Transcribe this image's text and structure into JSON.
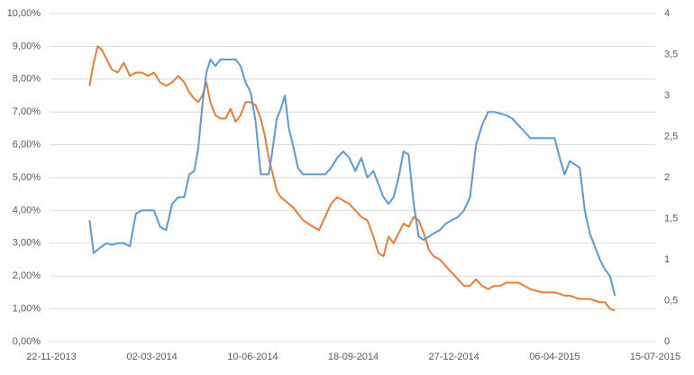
{
  "chart_data": {
    "type": "line",
    "x": [
      "30-12-2013",
      "03-01-2014",
      "07-01-2014",
      "11-01-2014",
      "16-01-2014",
      "21-01-2014",
      "27-01-2014",
      "02-02-2014",
      "08-02-2014",
      "14-02-2014",
      "20-02-2014",
      "26-02-2014",
      "04-03-2014",
      "10-03-2014",
      "16-03-2014",
      "22-03-2014",
      "28-03-2014",
      "03-04-2014",
      "08-04-2014",
      "13-04-2014",
      "17-04-2014",
      "21-04-2014",
      "25-04-2014",
      "29-04-2014",
      "04-05-2014",
      "09-05-2014",
      "14-05-2014",
      "19-05-2014",
      "24-05-2014",
      "29-05-2014",
      "03-06-2014",
      "08-06-2014",
      "13-06-2014",
      "18-06-2014",
      "22-06-2014",
      "26-06-2014",
      "30-06-2014",
      "04-07-2014",
      "08-07-2014",
      "12-07-2014",
      "16-07-2014",
      "20-07-2014",
      "25-07-2014",
      "30-07-2014",
      "04-08-2014",
      "09-08-2014",
      "15-08-2014",
      "21-08-2014",
      "27-08-2014",
      "02-09-2014",
      "08-09-2014",
      "14-09-2014",
      "20-09-2014",
      "26-09-2014",
      "02-10-2014",
      "08-10-2014",
      "13-10-2014",
      "18-10-2014",
      "23-10-2014",
      "28-10-2014",
      "02-11-2014",
      "07-11-2014",
      "12-11-2014",
      "17-11-2014",
      "22-11-2014",
      "27-11-2014",
      "02-12-2014",
      "07-12-2014",
      "13-12-2014",
      "19-12-2014",
      "25-12-2014",
      "31-12-2014",
      "06-01-2015",
      "12-01-2015",
      "18-01-2015",
      "24-01-2015",
      "30-01-2015",
      "05-02-2015",
      "11-02-2015",
      "17-02-2015",
      "23-02-2015",
      "01-03-2015",
      "07-03-2015",
      "13-03-2015",
      "19-03-2015",
      "25-03-2015",
      "31-03-2015",
      "06-04-2015",
      "12-04-2015",
      "16-04-2015",
      "21-04-2015",
      "26-04-2015",
      "01-05-2015",
      "06-05-2015",
      "11-05-2015",
      "16-05-2015",
      "21-05-2015",
      "26-05-2015",
      "31-05-2015",
      "05-06-2015"
    ],
    "series": [
      {
        "color": "#ed7d31",
        "values": [
          7.8,
          8.5,
          9.0,
          8.9,
          8.6,
          8.3,
          8.2,
          8.5,
          8.1,
          8.2,
          8.2,
          8.1,
          8.2,
          7.9,
          7.8,
          7.9,
          8.1,
          7.9,
          7.6,
          7.4,
          7.3,
          7.5,
          7.9,
          7.3,
          6.9,
          6.8,
          6.8,
          7.1,
          6.7,
          6.9,
          7.3,
          7.3,
          7.2,
          6.8,
          6.3,
          5.6,
          5.1,
          4.6,
          4.4,
          4.3,
          4.2,
          4.1,
          3.9,
          3.7,
          3.6,
          3.5,
          3.4,
          3.8,
          4.2,
          4.4,
          4.3,
          4.2,
          4.0,
          3.8,
          3.7,
          3.2,
          2.7,
          2.6,
          3.2,
          3.0,
          3.3,
          3.6,
          3.5,
          3.8,
          3.7,
          3.3,
          2.8,
          2.6,
          2.5,
          2.3,
          2.1,
          1.9,
          1.7,
          1.7,
          1.9,
          1.7,
          1.6,
          1.7,
          1.7,
          1.8,
          1.8,
          1.8,
          1.7,
          1.6,
          1.55,
          1.5,
          1.5,
          1.5,
          1.45,
          1.4,
          1.4,
          1.35,
          1.3,
          1.3,
          1.3,
          1.25,
          1.2,
          1.2,
          1.0,
          0.95
        ]
      },
      {
        "color": "#5b9bd5",
        "axis": "y2",
        "values": [
          1.48,
          1.08,
          1.12,
          1.16,
          1.2,
          1.18,
          1.2,
          1.2,
          1.16,
          1.56,
          1.6,
          1.6,
          1.6,
          1.4,
          1.36,
          1.68,
          1.76,
          1.76,
          2.04,
          2.08,
          2.36,
          2.88,
          3.28,
          3.44,
          3.36,
          3.44,
          3.44,
          3.44,
          3.44,
          3.36,
          3.16,
          3.04,
          2.68,
          2.04,
          2.04,
          2.04,
          2.36,
          2.72,
          2.84,
          3.0,
          2.6,
          2.4,
          2.12,
          2.04,
          2.04,
          2.04,
          2.04,
          2.04,
          2.12,
          2.24,
          2.32,
          2.24,
          2.08,
          2.24,
          2.0,
          2.08,
          1.92,
          1.76,
          1.68,
          1.76,
          2.0,
          2.32,
          2.28,
          1.68,
          1.28,
          1.24,
          1.28,
          1.32,
          1.36,
          1.44,
          1.48,
          1.52,
          1.6,
          1.76,
          2.4,
          2.64,
          2.8,
          2.8,
          2.78,
          2.76,
          2.72,
          2.64,
          2.56,
          2.48,
          2.48,
          2.48,
          2.48,
          2.48,
          2.2,
          2.04,
          2.2,
          2.16,
          2.12,
          1.6,
          1.32,
          1.16,
          1.0,
          0.88,
          0.8,
          0.56
        ]
      }
    ],
    "xlim": [
      "22-11-2013",
      "15-07-2015"
    ],
    "xticks": [
      "22-11-2013",
      "02-03-2014",
      "10-06-2014",
      "18-09-2014",
      "27-12-2014",
      "06-04-2015",
      "15-07-2015"
    ],
    "ylim": [
      0,
      10
    ],
    "yticks": [
      {
        "value": 0,
        "label": "0,00%"
      },
      {
        "value": 1,
        "label": "1,00%"
      },
      {
        "value": 2,
        "label": "2,00%"
      },
      {
        "value": 3,
        "label": "3,00%"
      },
      {
        "value": 4,
        "label": "4,00%"
      },
      {
        "value": 5,
        "label": "5,00%"
      },
      {
        "value": 6,
        "label": "6,00%"
      },
      {
        "value": 7,
        "label": "7,00%"
      },
      {
        "value": 8,
        "label": "8,00%"
      },
      {
        "value": 9,
        "label": "9,00%"
      },
      {
        "value": 10,
        "label": "10,00%"
      }
    ],
    "y2lim": [
      0,
      4
    ],
    "y2ticks": [
      0,
      {
        "value": 0.5,
        "label": "0,5"
      },
      1,
      {
        "value": 1.5,
        "label": "1,5"
      },
      2,
      {
        "value": 2.5,
        "label": "2,5"
      },
      3,
      {
        "value": 3.5,
        "label": "3,5"
      },
      4
    ],
    "grid": true
  }
}
